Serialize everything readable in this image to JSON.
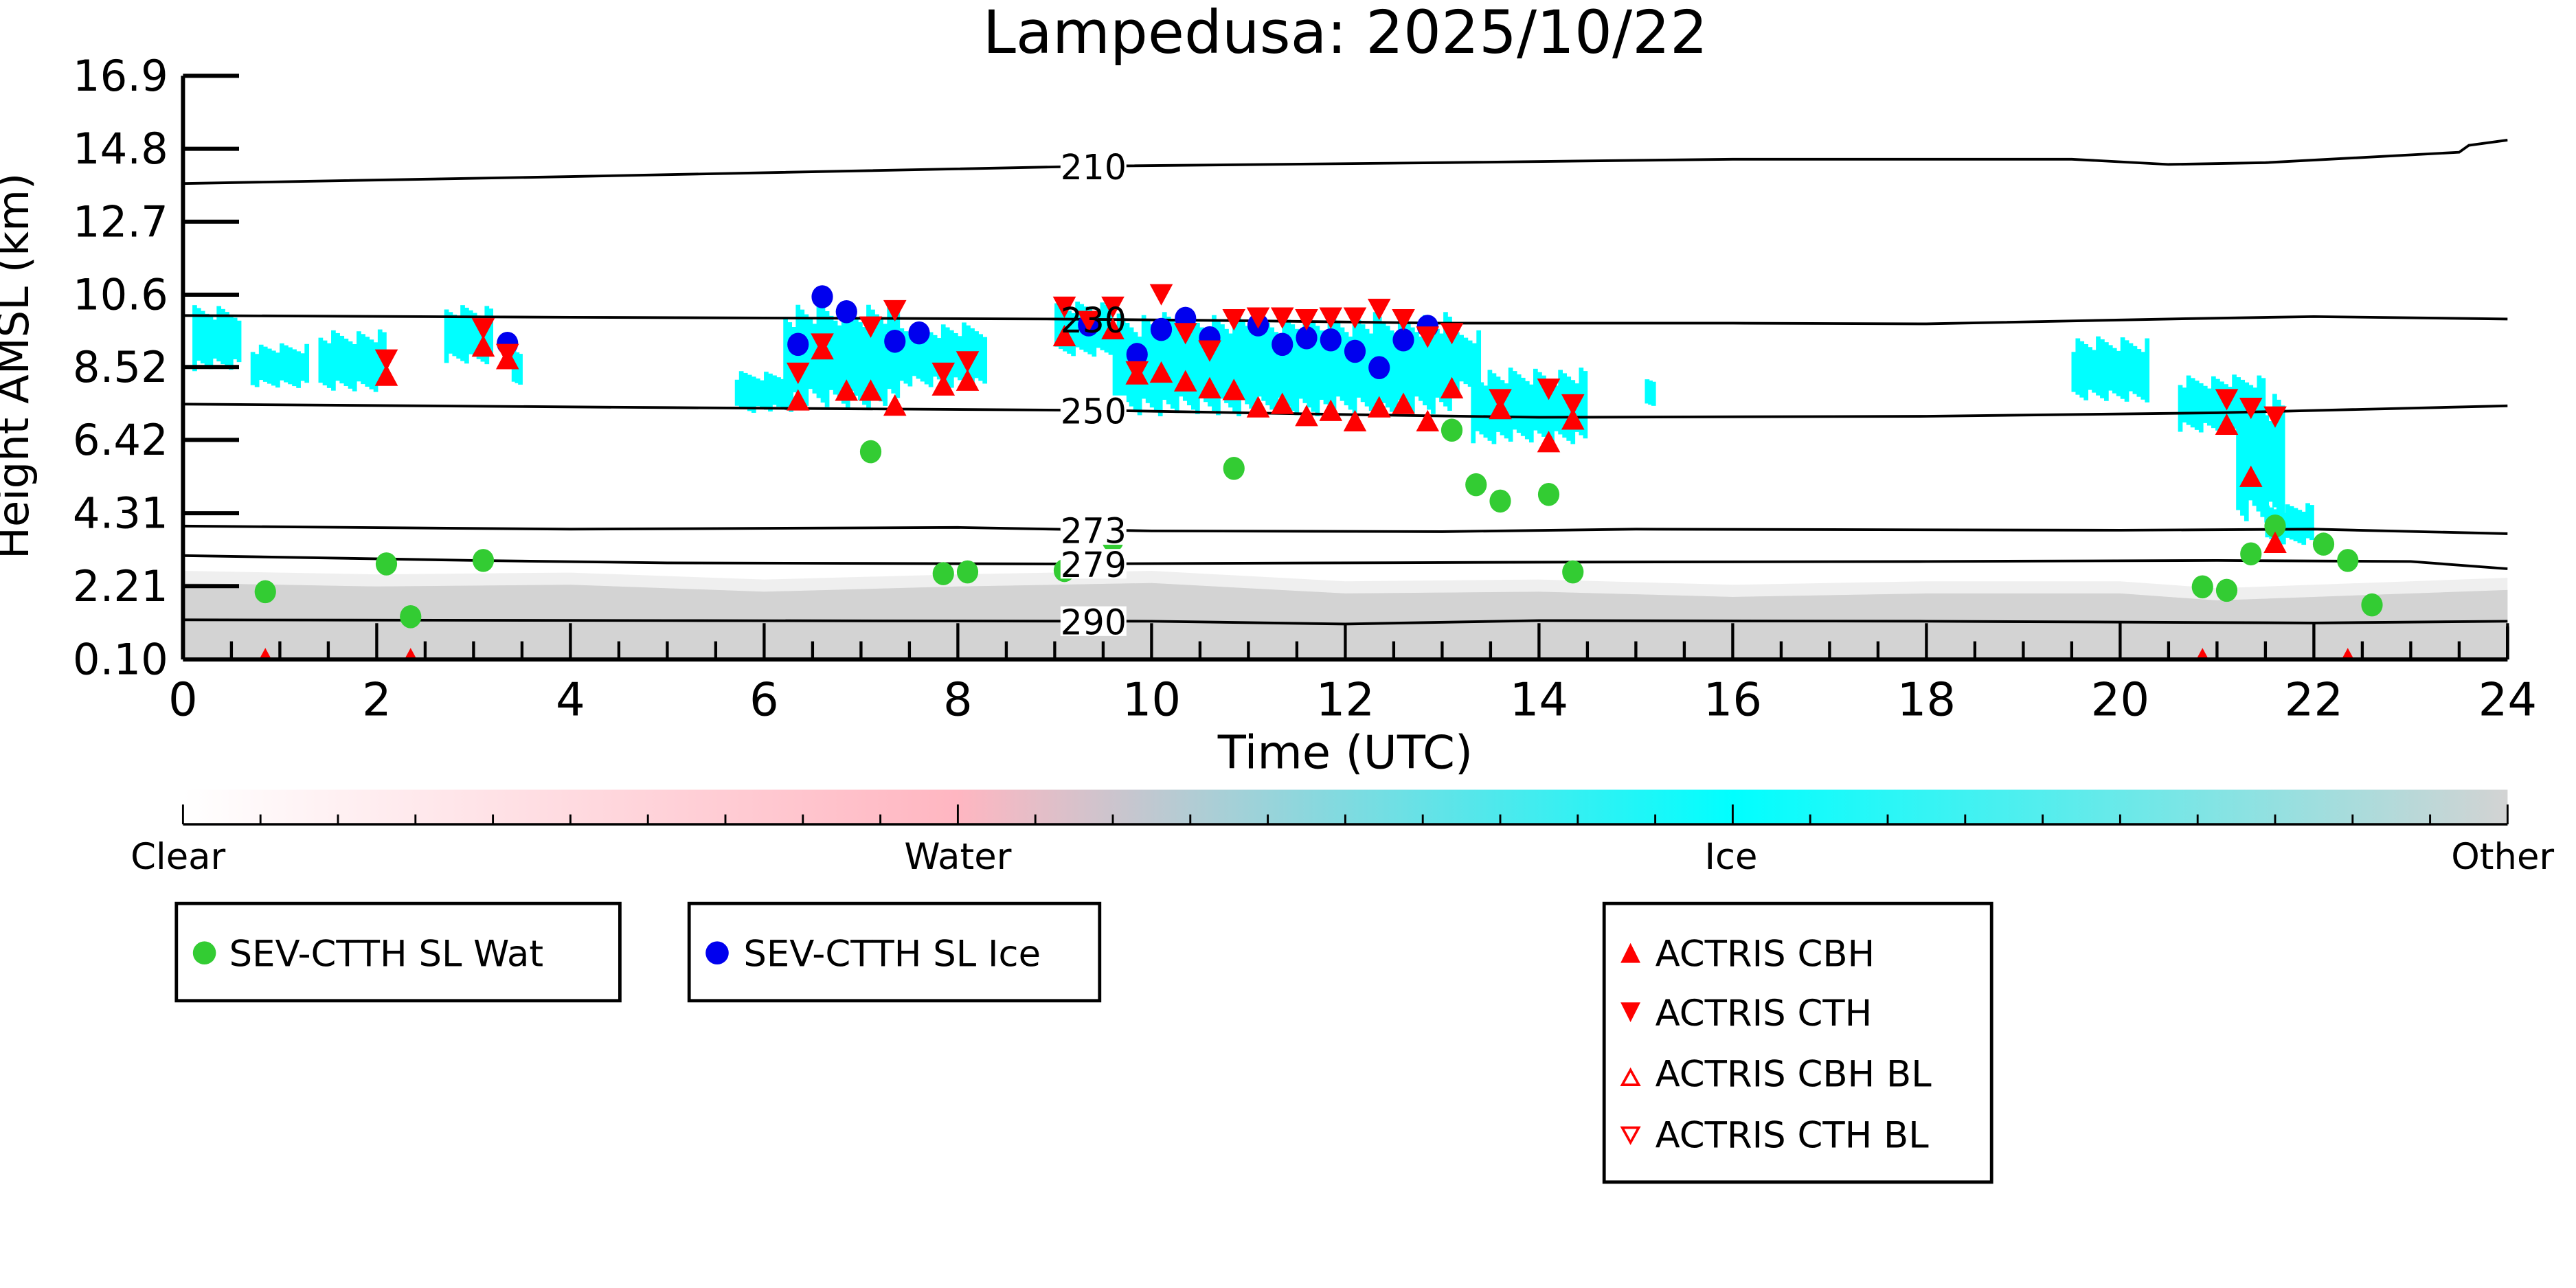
{
  "chart_data": {
    "type": "scatter",
    "title": "Lampedusa: 2025/10/22",
    "xlabel": "Time (UTC)",
    "ylabel": "Height AMSL (km)",
    "xlim": [
      0,
      24
    ],
    "ylim": [
      0.1,
      16.9
    ],
    "xticks": [
      "0",
      "2",
      "4",
      "6",
      "8",
      "10",
      "12",
      "14",
      "16",
      "18",
      "20",
      "22",
      "24"
    ],
    "yticks": [
      "0.10",
      "2.21",
      "4.31",
      "6.42",
      "8.52",
      "10.6",
      "12.7",
      "14.8",
      "16.9"
    ],
    "colorbar": {
      "labels": [
        "Clear",
        "Water",
        "Ice",
        "Other"
      ],
      "colors": [
        "#ffffff",
        "#ffb6c1",
        "#00ffff",
        "#d3d3d3"
      ]
    },
    "colors": {
      "wat": "#33cc33",
      "ice": "#0000ee",
      "actris": "#ff0000",
      "ground": "#d3d3d3",
      "cloud_ice": "#00ffff"
    },
    "isotherms": [
      {
        "label": "210",
        "label_t": 9.4,
        "points": [
          [
            0,
            13.8
          ],
          [
            4,
            14.0
          ],
          [
            9.4,
            14.3
          ],
          [
            13,
            14.4
          ],
          [
            16,
            14.5
          ],
          [
            19.5,
            14.5
          ],
          [
            20.5,
            14.35
          ],
          [
            21.5,
            14.4
          ],
          [
            23.5,
            14.7
          ],
          [
            23.6,
            14.9
          ],
          [
            24,
            15.05
          ]
        ]
      },
      {
        "label": "230",
        "label_t": 9.4,
        "points": [
          [
            0,
            10.0
          ],
          [
            4,
            9.95
          ],
          [
            9,
            9.9
          ],
          [
            11,
            9.85
          ],
          [
            13,
            9.78
          ],
          [
            16,
            9.78
          ],
          [
            18,
            9.76
          ],
          [
            20.5,
            9.9
          ],
          [
            22,
            9.97
          ],
          [
            24,
            9.9
          ]
        ]
      },
      {
        "label": "250",
        "label_t": 9.4,
        "points": [
          [
            0,
            7.45
          ],
          [
            5,
            7.35
          ],
          [
            9.5,
            7.27
          ],
          [
            12,
            7.15
          ],
          [
            14,
            7.07
          ],
          [
            18,
            7.1
          ],
          [
            21,
            7.2
          ],
          [
            24,
            7.4
          ]
        ]
      },
      {
        "label": "273",
        "label_t": 9.4,
        "points": [
          [
            0,
            3.94
          ],
          [
            4,
            3.85
          ],
          [
            8,
            3.9
          ],
          [
            10,
            3.8
          ],
          [
            13,
            3.78
          ],
          [
            15,
            3.85
          ],
          [
            20,
            3.82
          ],
          [
            22,
            3.85
          ],
          [
            24,
            3.72
          ]
        ]
      },
      {
        "label": "279",
        "label_t": 9.4,
        "points": [
          [
            0,
            3.09
          ],
          [
            3,
            2.95
          ],
          [
            5,
            2.88
          ],
          [
            9,
            2.85
          ],
          [
            14,
            2.9
          ],
          [
            18,
            2.92
          ],
          [
            21,
            2.95
          ],
          [
            23,
            2.92
          ],
          [
            24,
            2.71
          ]
        ]
      },
      {
        "label": "290",
        "label_t": 9.4,
        "points": [
          [
            0,
            1.24
          ],
          [
            5,
            1.22
          ],
          [
            10,
            1.2
          ],
          [
            12,
            1.12
          ],
          [
            14,
            1.22
          ],
          [
            18,
            1.2
          ],
          [
            22,
            1.15
          ],
          [
            24,
            1.2
          ]
        ]
      }
    ],
    "ground_clutter": [
      [
        0,
        2.3
      ],
      [
        2,
        2.2
      ],
      [
        4,
        2.25
      ],
      [
        6,
        2.05
      ],
      [
        8,
        2.2
      ],
      [
        10,
        2.3
      ],
      [
        12,
        2.0
      ],
      [
        14,
        2.05
      ],
      [
        16,
        1.9
      ],
      [
        18,
        2.0
      ],
      [
        20,
        2.0
      ],
      [
        21,
        1.8
      ],
      [
        22,
        1.9
      ],
      [
        24,
        2.1
      ]
    ],
    "ice_regions": [
      [
        0.1,
        0.6,
        8.4,
        10.3
      ],
      [
        0.7,
        1.3,
        7.9,
        9.2
      ],
      [
        1.4,
        2.1,
        7.8,
        9.6
      ],
      [
        2.7,
        3.2,
        8.6,
        10.3
      ],
      [
        3.4,
        3.5,
        8.0,
        9.0
      ],
      [
        5.7,
        6.3,
        7.2,
        8.4
      ],
      [
        6.2,
        7.4,
        7.3,
        10.4
      ],
      [
        7.4,
        8.3,
        7.9,
        9.8
      ],
      [
        9.0,
        9.6,
        8.8,
        10.4
      ],
      [
        9.6,
        13.1,
        7.1,
        10.1
      ],
      [
        13.0,
        13.4,
        7.8,
        9.6
      ],
      [
        13.3,
        14.5,
        6.3,
        8.5
      ],
      [
        15.1,
        15.2,
        7.4,
        8.2
      ],
      [
        19.5,
        20.3,
        7.5,
        9.4
      ],
      [
        20.6,
        21.5,
        6.6,
        8.3
      ],
      [
        21.2,
        21.7,
        4.0,
        7.8
      ],
      [
        21.5,
        22.0,
        3.4,
        4.6
      ]
    ],
    "series": [
      {
        "name": "SEV-CTTH SL Wat",
        "marker": "circle",
        "color": "#33cc33",
        "points": [
          [
            0.85,
            2.05
          ],
          [
            2.1,
            2.85
          ],
          [
            2.35,
            1.33
          ],
          [
            3.1,
            2.95
          ],
          [
            7.1,
            6.08
          ],
          [
            7.85,
            2.57
          ],
          [
            8.1,
            2.62
          ],
          [
            9.1,
            2.66
          ],
          [
            9.6,
            3.52
          ],
          [
            10.85,
            5.6
          ],
          [
            13.1,
            6.7
          ],
          [
            13.35,
            5.13
          ],
          [
            13.6,
            4.66
          ],
          [
            14.1,
            4.85
          ],
          [
            14.35,
            2.62
          ],
          [
            20.85,
            2.19
          ],
          [
            21.1,
            2.09
          ],
          [
            21.35,
            3.14
          ],
          [
            21.6,
            3.94
          ],
          [
            22.1,
            3.42
          ],
          [
            22.35,
            2.95
          ],
          [
            22.6,
            1.67
          ]
        ]
      },
      {
        "name": "SEV-CTTH SL Ice",
        "marker": "circle",
        "color": "#0000ee",
        "points": [
          [
            3.35,
            9.2
          ],
          [
            6.35,
            9.17
          ],
          [
            6.6,
            10.54
          ],
          [
            6.85,
            10.11
          ],
          [
            7.35,
            9.26
          ],
          [
            7.6,
            9.5
          ],
          [
            9.35,
            9.73
          ],
          [
            9.85,
            8.88
          ],
          [
            10.1,
            9.6
          ],
          [
            10.35,
            9.92
          ],
          [
            10.6,
            9.36
          ],
          [
            11.1,
            9.73
          ],
          [
            11.35,
            9.17
          ],
          [
            11.6,
            9.36
          ],
          [
            11.85,
            9.3
          ],
          [
            12.1,
            8.97
          ],
          [
            12.35,
            8.5
          ],
          [
            12.6,
            9.3
          ],
          [
            12.85,
            9.69
          ]
        ]
      },
      {
        "name": "ACTRIS CBH",
        "marker": "triangle-up",
        "color": "#ff0000",
        "points": [
          [
            0.85,
            0.1
          ],
          [
            2.1,
            8.26
          ],
          [
            2.35,
            0.1
          ],
          [
            3.1,
            9.1
          ],
          [
            3.35,
            8.74
          ],
          [
            6.35,
            7.55
          ],
          [
            6.6,
            9.02
          ],
          [
            6.85,
            7.83
          ],
          [
            7.1,
            7.83
          ],
          [
            7.35,
            7.4
          ],
          [
            7.85,
            7.98
          ],
          [
            8.1,
            8.12
          ],
          [
            9.1,
            9.4
          ],
          [
            9.6,
            9.6
          ],
          [
            9.85,
            8.3
          ],
          [
            10.1,
            8.35
          ],
          [
            10.35,
            8.1
          ],
          [
            10.6,
            7.9
          ],
          [
            10.85,
            7.85
          ],
          [
            11.1,
            7.35
          ],
          [
            11.35,
            7.45
          ],
          [
            11.6,
            7.1
          ],
          [
            11.85,
            7.25
          ],
          [
            12.1,
            6.95
          ],
          [
            12.35,
            7.35
          ],
          [
            12.6,
            7.45
          ],
          [
            12.85,
            6.95
          ],
          [
            13.1,
            7.9
          ],
          [
            13.6,
            7.3
          ],
          [
            14.1,
            6.35
          ],
          [
            14.35,
            7.0
          ],
          [
            20.85,
            0.1
          ],
          [
            21.1,
            6.85
          ],
          [
            21.35,
            5.35
          ],
          [
            21.6,
            3.45
          ],
          [
            22.35,
            0.1
          ]
        ]
      },
      {
        "name": "ACTRIS CTH",
        "marker": "triangle-down",
        "color": "#ff0000",
        "points": [
          [
            2.1,
            8.74
          ],
          [
            3.1,
            9.64
          ],
          [
            3.35,
            8.9
          ],
          [
            6.35,
            8.36
          ],
          [
            6.6,
            9.2
          ],
          [
            7.1,
            9.69
          ],
          [
            7.35,
            10.16
          ],
          [
            7.85,
            8.36
          ],
          [
            8.1,
            8.69
          ],
          [
            9.1,
            10.26
          ],
          [
            9.35,
            9.85
          ],
          [
            9.6,
            10.26
          ],
          [
            9.85,
            8.4
          ],
          [
            10.1,
            10.62
          ],
          [
            10.35,
            9.5
          ],
          [
            10.6,
            9.0
          ],
          [
            10.85,
            9.9
          ],
          [
            11.1,
            9.95
          ],
          [
            11.35,
            9.95
          ],
          [
            11.6,
            9.9
          ],
          [
            11.85,
            9.95
          ],
          [
            12.1,
            9.95
          ],
          [
            12.35,
            10.2
          ],
          [
            12.6,
            9.9
          ],
          [
            12.85,
            9.4
          ],
          [
            13.1,
            9.5
          ],
          [
            13.6,
            7.6
          ],
          [
            14.1,
            7.9
          ],
          [
            14.35,
            7.45
          ],
          [
            21.1,
            7.6
          ],
          [
            21.35,
            7.35
          ],
          [
            21.6,
            7.1
          ]
        ]
      },
      {
        "name": "ACTRIS CBH BL",
        "marker": "triangle-up-open",
        "color": "#ff0000",
        "points": []
      },
      {
        "name": "ACTRIS CTH BL",
        "marker": "triangle-down-open",
        "color": "#ff0000",
        "points": []
      }
    ],
    "legend_placement": "bottom"
  }
}
